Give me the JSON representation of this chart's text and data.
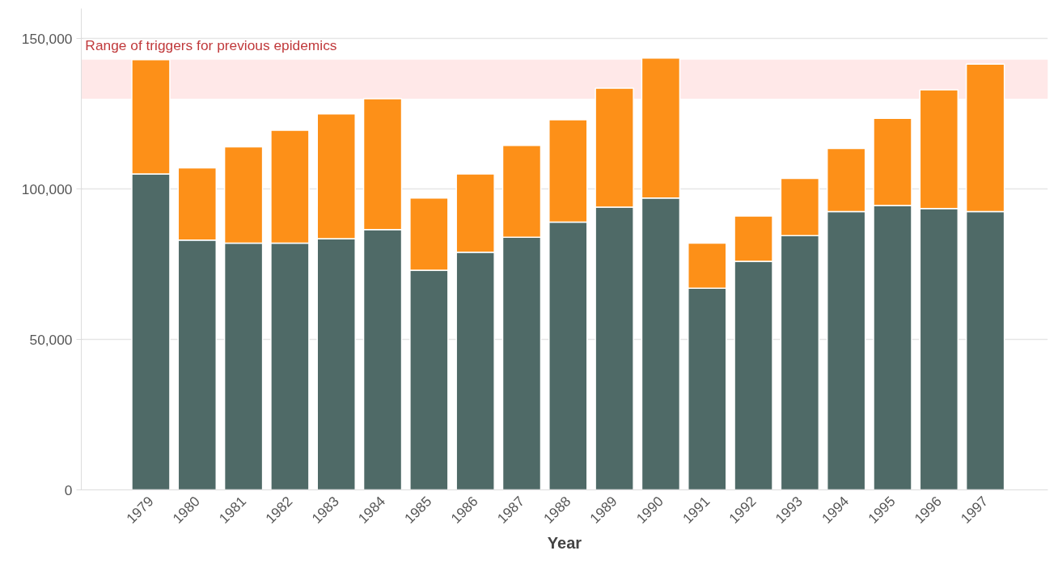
{
  "chart_data": {
    "type": "bar",
    "stacked": true,
    "xlabel": "Year",
    "categories": [
      "1979",
      "1980",
      "1981",
      "1982",
      "1983",
      "1984",
      "1985",
      "1986",
      "1987",
      "1988",
      "1989",
      "1990",
      "1991",
      "1992",
      "1993",
      "1994",
      "1995",
      "1996",
      "1997"
    ],
    "series": [
      {
        "color": "#4f6a67",
        "values": [
          105000,
          83000,
          82000,
          82000,
          83500,
          86500,
          73000,
          79000,
          84000,
          89000,
          94000,
          97000,
          67000,
          76000,
          84500,
          92500,
          94500,
          93500,
          92500
        ]
      },
      {
        "color": "#fd9018",
        "values": [
          38000,
          24000,
          32000,
          37500,
          41500,
          43500,
          24000,
          26000,
          30500,
          34000,
          39500,
          46500,
          15000,
          15000,
          19000,
          21000,
          29000,
          39500,
          49000
        ]
      }
    ],
    "ylim": [
      0,
      160000
    ],
    "yticks": [
      {
        "value": 0,
        "label": "0"
      },
      {
        "value": 50000,
        "label": "50,000"
      },
      {
        "value": 100000,
        "label": "100,000"
      },
      {
        "value": 150000,
        "label": "150,000"
      }
    ],
    "bands": [
      {
        "axis": "y",
        "from": 130000,
        "to": 143000,
        "label": "Range of triggers for previous epidemics",
        "color": "#ffe8e8"
      }
    ],
    "grid": "y"
  }
}
